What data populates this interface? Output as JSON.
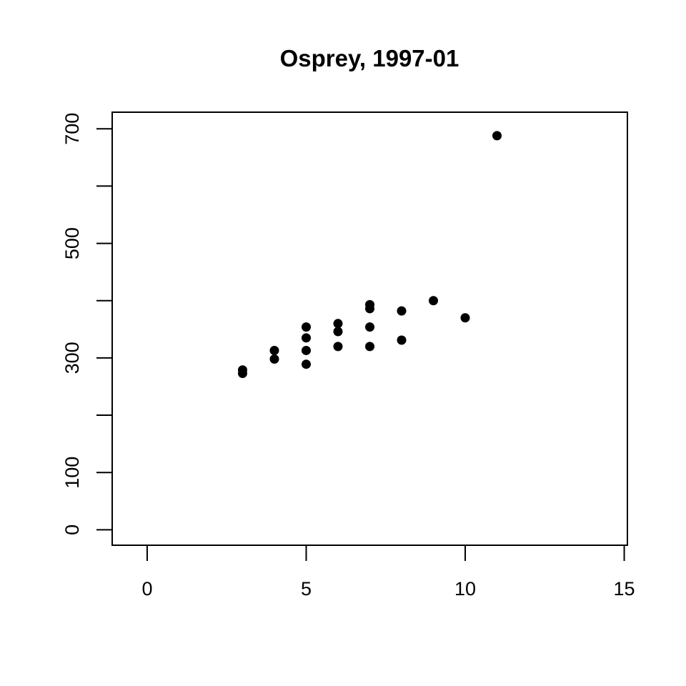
{
  "chart_data": {
    "type": "scatter",
    "title": "Osprey, 1997-01",
    "xlabel": "",
    "ylabel": "",
    "xlim": [
      -1.1,
      15.1
    ],
    "ylim": [
      -27,
      729
    ],
    "x_ticks": [
      0,
      5,
      10,
      15
    ],
    "y_ticks": [
      0,
      100,
      200,
      300,
      400,
      500,
      600,
      700
    ],
    "y_tick_labels": [
      "0",
      "100",
      "",
      "300",
      "",
      "500",
      "",
      "700"
    ],
    "grid": false,
    "point_color": "#000000",
    "series": [
      {
        "points": [
          {
            "x": 3,
            "y": 273
          },
          {
            "x": 3,
            "y": 279
          },
          {
            "x": 4,
            "y": 298
          },
          {
            "x": 4,
            "y": 313
          },
          {
            "x": 5,
            "y": 289
          },
          {
            "x": 5,
            "y": 313
          },
          {
            "x": 5,
            "y": 335
          },
          {
            "x": 5,
            "y": 354
          },
          {
            "x": 6,
            "y": 320
          },
          {
            "x": 6,
            "y": 346
          },
          {
            "x": 6,
            "y": 360
          },
          {
            "x": 7,
            "y": 320
          },
          {
            "x": 7,
            "y": 354
          },
          {
            "x": 7,
            "y": 386
          },
          {
            "x": 7,
            "y": 393
          },
          {
            "x": 8,
            "y": 331
          },
          {
            "x": 8,
            "y": 382
          },
          {
            "x": 9,
            "y": 400
          },
          {
            "x": 10,
            "y": 370
          },
          {
            "x": 11,
            "y": 688
          }
        ]
      }
    ]
  }
}
